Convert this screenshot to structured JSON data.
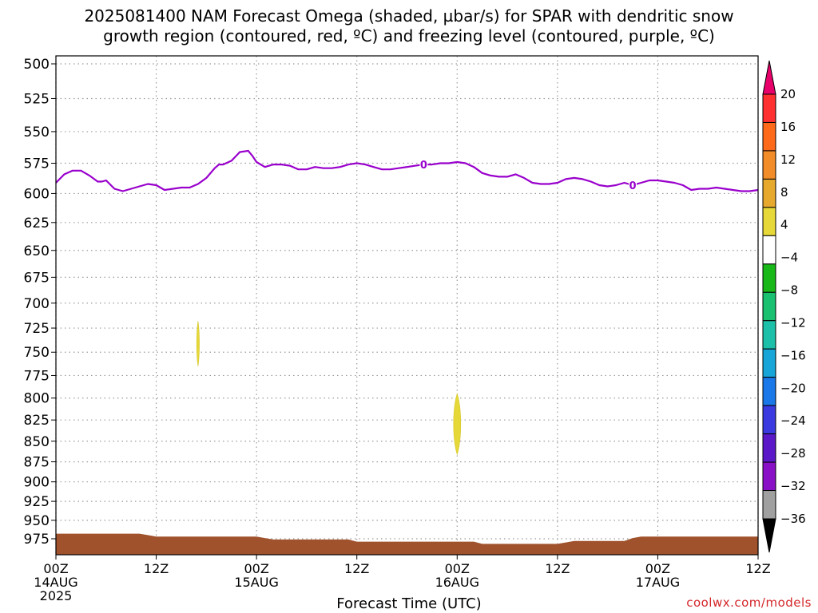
{
  "title": "2025081400 NAM Forecast Omega (shaded, µbar/s) for SPAR with dendritic snow\ngrowth region (contoured, red, ºC) and freezing level (contoured, purple, ºC)",
  "credit": "coolwx.com/models",
  "colors": {
    "freezing_line": "#9900cc",
    "terrain": "#a0522d",
    "omega_shade": "#e6d839",
    "grid": "#9a9a9a"
  },
  "chart_data": {
    "type": "heatmap",
    "title": "2025081400 NAM Forecast Omega (shaded, µbar/s) for SPAR with dendritic snow growth region (contoured, red, ºC) and freezing level (contoured, purple, ºC)",
    "xlabel": "Forecast Time (UTC)",
    "ylabel": "",
    "xlim": [
      0,
      84
    ],
    "ylim": [
      500,
      990
    ],
    "y_scale": "log",
    "y_inverted": true,
    "grid": true,
    "x_ticks": [
      {
        "hour": 0,
        "label": "00Z",
        "date": "14AUG",
        "year": "2025"
      },
      {
        "hour": 12,
        "label": "12Z",
        "date": "",
        "year": ""
      },
      {
        "hour": 24,
        "label": "00Z",
        "date": "15AUG",
        "year": ""
      },
      {
        "hour": 36,
        "label": "12Z",
        "date": "",
        "year": ""
      },
      {
        "hour": 48,
        "label": "00Z",
        "date": "16AUG",
        "year": ""
      },
      {
        "hour": 60,
        "label": "12Z",
        "date": "",
        "year": ""
      },
      {
        "hour": 72,
        "label": "00Z",
        "date": "17AUG",
        "year": ""
      },
      {
        "hour": 84,
        "label": "12Z",
        "date": "",
        "year": ""
      }
    ],
    "y_ticks": [
      500,
      525,
      550,
      575,
      600,
      625,
      650,
      675,
      700,
      725,
      750,
      775,
      800,
      825,
      850,
      875,
      900,
      925,
      950,
      975
    ],
    "freezing_level": {
      "label": "0",
      "label_hours": [
        44,
        69
      ],
      "hours": [
        0,
        1,
        2,
        3,
        4,
        5,
        5.5,
        6,
        7,
        8,
        9,
        10,
        11,
        12,
        13,
        14,
        15,
        16,
        17,
        18,
        19,
        19.5,
        20,
        21,
        22,
        23,
        23.5,
        24,
        25,
        26,
        27,
        28,
        29,
        30,
        31,
        32,
        33,
        34,
        35,
        36,
        37,
        38,
        39,
        40,
        41,
        42,
        43,
        44,
        45,
        46,
        47,
        48,
        49,
        50,
        51,
        52,
        53,
        54,
        55,
        56,
        57,
        58,
        59,
        60,
        61,
        62,
        63,
        64,
        65,
        66,
        67,
        68,
        69,
        70,
        71,
        72,
        73,
        74,
        75,
        76,
        77,
        78,
        79,
        80,
        81,
        82,
        83,
        84
      ],
      "pressure": [
        591,
        584,
        581,
        581,
        585,
        590,
        590,
        589,
        596,
        598,
        596,
        594,
        592,
        593,
        597,
        596,
        595,
        595,
        592,
        587,
        579,
        576,
        576,
        573,
        566,
        565,
        569,
        574,
        578,
        576,
        576,
        577,
        580,
        580,
        578,
        579,
        579,
        578,
        576,
        575,
        576,
        578,
        580,
        580,
        579,
        578,
        577,
        576,
        576,
        575,
        575,
        574,
        575,
        578,
        583,
        585,
        586,
        586,
        584,
        587,
        591,
        592,
        592,
        591,
        588,
        587,
        588,
        590,
        593,
        594,
        593,
        591,
        593,
        591,
        589,
        589,
        590,
        591,
        593,
        597,
        596,
        596,
        595,
        596,
        597,
        598,
        598,
        597
      ]
    },
    "omega_features": [
      {
        "value_range": "4 to 8",
        "center_hour": 17,
        "pressure_range": [
          718,
          765
        ]
      },
      {
        "value_range": "4 to 8",
        "center_hour": 48,
        "pressure_range": [
          795,
          866
        ]
      }
    ],
    "terrain": {
      "hours": [
        0,
        10,
        11,
        12,
        24,
        25,
        26,
        35,
        36,
        50,
        51,
        60,
        61,
        62,
        68,
        69,
        70,
        84
      ],
      "pressure": [
        968,
        968,
        970,
        972,
        972,
        974,
        976,
        976,
        979,
        979,
        982,
        982,
        980,
        978,
        978,
        974,
        972,
        972
      ]
    },
    "colorbar": {
      "labels": [
        "20",
        "16",
        "12",
        "8",
        "4",
        "−4",
        "−8",
        "−12",
        "−16",
        "−20",
        "−24",
        "−28",
        "−32",
        "−36"
      ],
      "colors": [
        "#e8006a",
        "#ff3030",
        "#ff6a1a",
        "#f28c28",
        "#e6a92e",
        "#e6d839",
        "#ffffff",
        "#18b818",
        "#18c070",
        "#1cbfa8",
        "#18a6d8",
        "#1a78e8",
        "#3a3ae0",
        "#5a18c8",
        "#8a10c8",
        "#a0a0a0",
        "#000000"
      ]
    }
  }
}
